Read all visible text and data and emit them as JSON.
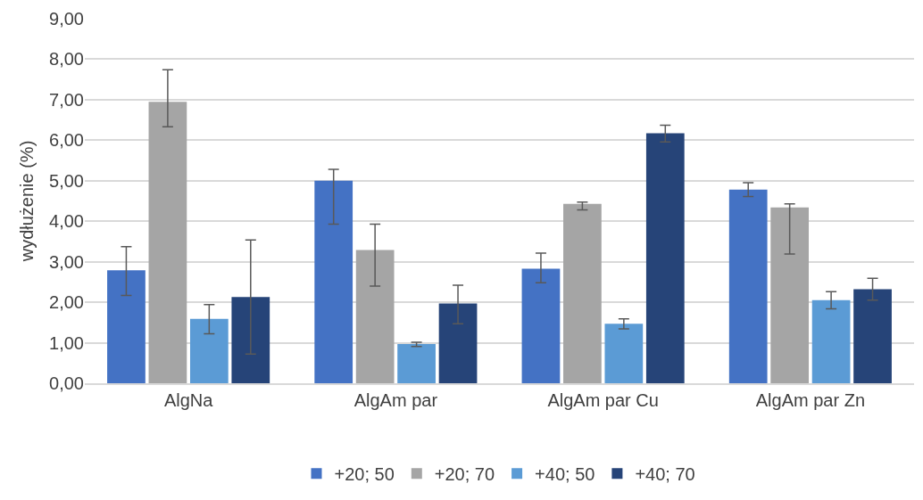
{
  "chart_data": {
    "type": "bar",
    "ylabel": "wydłużenie (%)",
    "categories": [
      "AlgNa",
      "AlgAm par",
      "AlgAm par Cu",
      "AlgAm par Zn"
    ],
    "series": [
      {
        "name": "+20; 50",
        "color": "#4472c4",
        "values": [
          2.79,
          5.0,
          2.83,
          4.78
        ],
        "errors": [
          [
            2.17,
            3.37
          ],
          [
            3.93,
            5.28
          ],
          [
            2.48,
            3.21
          ],
          [
            4.61,
            4.95
          ]
        ]
      },
      {
        "name": "+20; 70",
        "color": "#a5a5a5",
        "values": [
          6.95,
          3.29,
          4.43,
          4.34
        ],
        "errors": [
          [
            6.33,
            7.74
          ],
          [
            2.4,
            3.93
          ],
          [
            4.28,
            4.47
          ],
          [
            3.19,
            4.43
          ]
        ]
      },
      {
        "name": "+40; 50",
        "color": "#5b9bd5",
        "values": [
          1.59,
          0.97,
          1.47,
          2.05
        ],
        "errors": [
          [
            1.22,
            1.94
          ],
          [
            0.91,
            1.01
          ],
          [
            1.34,
            1.59
          ],
          [
            1.84,
            2.26
          ]
        ]
      },
      {
        "name": "+40; 70",
        "color": "#264478",
        "values": [
          2.13,
          1.97,
          6.17,
          2.32
        ],
        "errors": [
          [
            0.72,
            3.54
          ],
          [
            1.47,
            2.42
          ],
          [
            5.96,
            6.37
          ],
          [
            2.05,
            2.59
          ]
        ]
      }
    ],
    "ylim": [
      0,
      9
    ],
    "yticks": [
      {
        "value": 0,
        "label": "0,00"
      },
      {
        "value": 1,
        "label": "1,00"
      },
      {
        "value": 2,
        "label": "2,00"
      },
      {
        "value": 3,
        "label": "3,00"
      },
      {
        "value": 4,
        "label": "4,00"
      },
      {
        "value": 5,
        "label": "5,00"
      },
      {
        "value": 6,
        "label": "6,00"
      },
      {
        "value": 7,
        "label": "7,00"
      },
      {
        "value": 8,
        "label": "8,00"
      },
      {
        "value": 9,
        "label": "9,00"
      }
    ],
    "grid": "y",
    "legend": "bottom"
  }
}
